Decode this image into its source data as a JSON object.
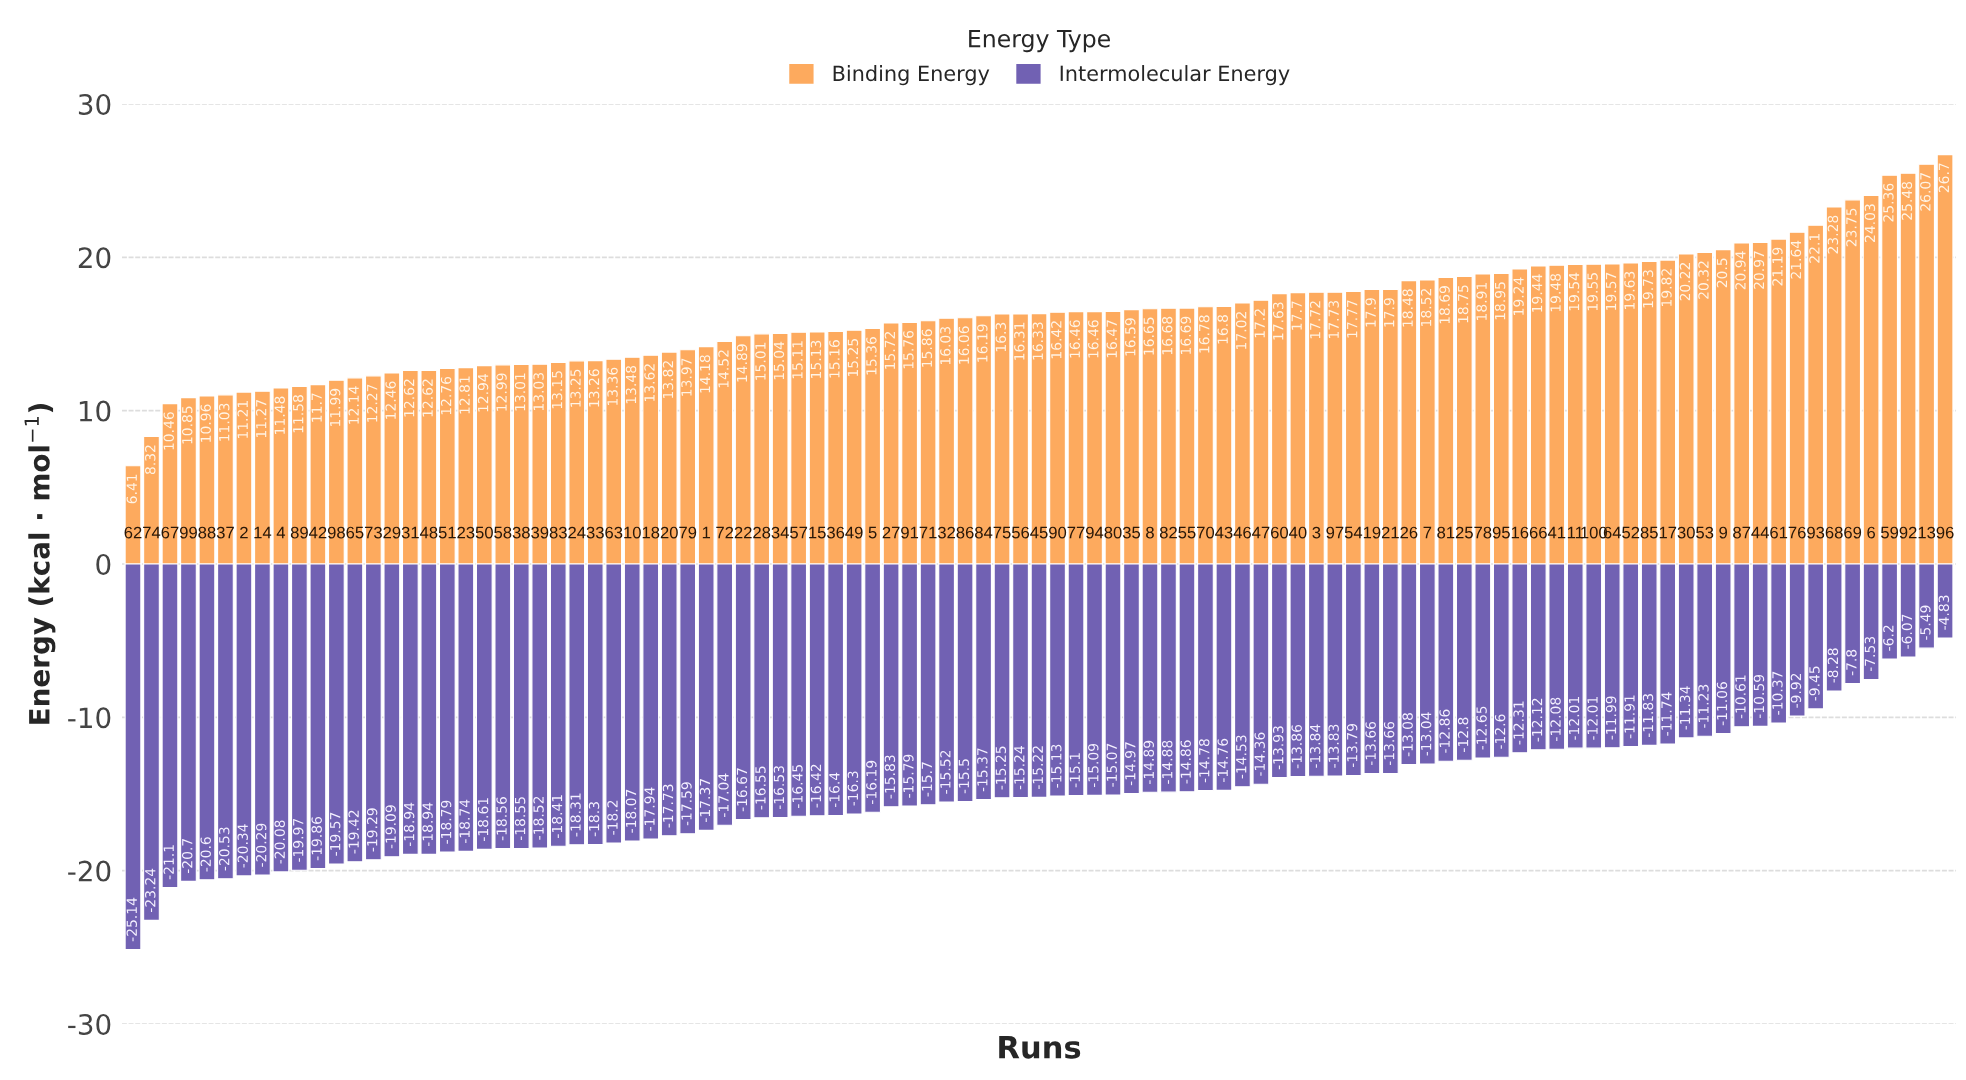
{
  "chart_data": {
    "type": "bar",
    "stacked": true,
    "xlabel": "Runs",
    "ylabel": "Energy (kcal · mol$^{−1}$)",
    "legend_title": "Energy Type",
    "legend": "top",
    "grid": "y",
    "data_labels": true,
    "ylim": [
      -30,
      30
    ],
    "yticks": [
      -30,
      -20,
      -10,
      0,
      10,
      20,
      30
    ],
    "categories": [
      "62",
      "74",
      "67",
      "99",
      "88",
      "37",
      "2",
      "14",
      "4",
      "89",
      "42",
      "98",
      "65",
      "73",
      "29",
      "31",
      "48",
      "51",
      "23",
      "50",
      "58",
      "38",
      "39",
      "83",
      "24",
      "33",
      "63",
      "10",
      "18",
      "20",
      "79",
      "1",
      "72",
      "22",
      "28",
      "34",
      "57",
      "15",
      "36",
      "49",
      "5",
      "27",
      "91",
      "71",
      "32",
      "86",
      "84",
      "75",
      "56",
      "45",
      "90",
      "77",
      "94",
      "80",
      "35",
      "8",
      "82",
      "55",
      "70",
      "43",
      "46",
      "47",
      "60",
      "40",
      "3",
      "97",
      "54",
      "19",
      "21",
      "26",
      "7",
      "81",
      "25",
      "78",
      "95",
      "16",
      "66",
      "41",
      "11",
      "100",
      "64",
      "52",
      "85",
      "17",
      "30",
      "53",
      "9",
      "87",
      "44",
      "61",
      "76",
      "93",
      "68",
      "69",
      "6",
      "59",
      "92",
      "13",
      "96"
    ],
    "series": [
      {
        "name": "Binding Energy",
        "color": "#fdaa5e",
        "values": [
          6.41,
          8.32,
          10.46,
          10.85,
          10.96,
          11.03,
          11.21,
          11.27,
          11.48,
          11.58,
          11.7,
          11.99,
          12.14,
          12.27,
          12.46,
          12.62,
          12.62,
          12.76,
          12.81,
          12.94,
          12.99,
          13.01,
          13.03,
          13.15,
          13.25,
          13.26,
          13.36,
          13.48,
          13.62,
          13.82,
          13.97,
          14.18,
          14.52,
          14.89,
          15.01,
          15.04,
          15.11,
          15.13,
          15.16,
          15.25,
          15.36,
          15.72,
          15.76,
          15.86,
          16.03,
          16.06,
          16.19,
          16.3,
          16.31,
          16.33,
          16.42,
          16.46,
          16.46,
          16.47,
          16.59,
          16.65,
          16.68,
          16.69,
          16.78,
          16.8,
          17.02,
          17.2,
          17.63,
          17.7,
          17.72,
          17.73,
          17.77,
          17.9,
          17.9,
          18.48,
          18.52,
          18.69,
          18.75,
          18.91,
          18.95,
          19.24,
          19.44,
          19.48,
          19.54,
          19.55,
          19.57,
          19.63,
          19.73,
          19.82,
          20.22,
          20.32,
          20.5,
          20.94,
          20.97,
          21.19,
          21.64,
          22.1,
          23.28,
          23.75,
          24.03,
          25.36,
          25.48,
          26.07,
          26.7
        ]
      },
      {
        "name": "Intermolecular Energy",
        "color": "#7161b3",
        "values": [
          -25.14,
          -23.24,
          -21.1,
          -20.7,
          -20.6,
          -20.53,
          -20.34,
          -20.29,
          -20.08,
          -19.97,
          -19.86,
          -19.57,
          -19.42,
          -19.29,
          -19.09,
          -18.94,
          -18.94,
          -18.79,
          -18.74,
          -18.61,
          -18.56,
          -18.55,
          -18.52,
          -18.41,
          -18.31,
          -18.3,
          -18.2,
          -18.07,
          -17.94,
          -17.73,
          -17.59,
          -17.37,
          -17.04,
          -16.67,
          -16.55,
          -16.53,
          -16.45,
          -16.42,
          -16.4,
          -16.3,
          -16.19,
          -15.83,
          -15.79,
          -15.7,
          -15.52,
          -15.5,
          -15.37,
          -15.25,
          -15.24,
          -15.22,
          -15.13,
          -15.1,
          -15.09,
          -15.07,
          -14.97,
          -14.89,
          -14.88,
          -14.86,
          -14.78,
          -14.76,
          -14.53,
          -14.36,
          -13.93,
          -13.86,
          -13.84,
          -13.83,
          -13.79,
          -13.66,
          -13.66,
          -13.08,
          -13.04,
          -12.86,
          -12.8,
          -12.65,
          -12.6,
          -12.31,
          -12.12,
          -12.08,
          -12.01,
          -12.01,
          -11.99,
          -11.91,
          -11.83,
          -11.74,
          -11.34,
          -11.23,
          -11.06,
          -10.61,
          -10.59,
          -10.37,
          -9.92,
          -9.45,
          -8.28,
          -7.8,
          -7.53,
          -6.2,
          -6.07,
          -5.49,
          -4.83
        ]
      }
    ]
  }
}
